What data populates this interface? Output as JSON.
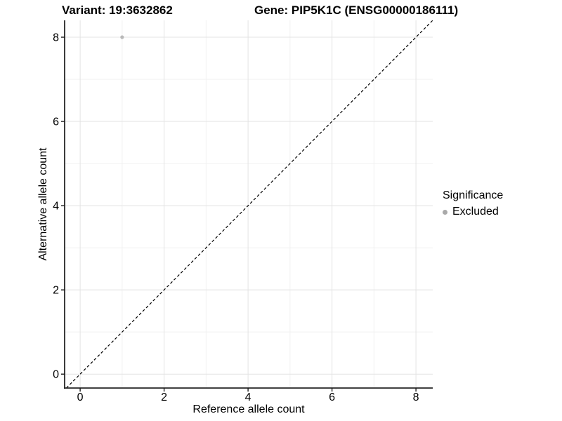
{
  "chart_data": {
    "type": "scatter",
    "titles": [
      "Variant: 19:3632862",
      "Gene: PIP5K1C (ENSG00000186111)"
    ],
    "xlabel": "Reference allele count",
    "ylabel": "Alternative allele count",
    "xlim": [
      -0.37,
      8.4
    ],
    "ylim": [
      -0.33,
      8.4
    ],
    "x_ticks": [
      0,
      2,
      4,
      6,
      8
    ],
    "y_ticks": [
      0,
      2,
      4,
      6,
      8
    ],
    "x_minor_ticks": [
      1,
      3,
      5,
      7
    ],
    "y_minor_ticks": [
      1,
      3,
      5,
      7
    ],
    "grid": "major+minor",
    "points": [
      {
        "x": 1,
        "y": 8,
        "significance": "Excluded"
      }
    ],
    "reference_line": {
      "kind": "identity y=x",
      "style": "dashed",
      "color": "#000000"
    },
    "legend": {
      "title": "Significance",
      "position": "right",
      "items": [
        {
          "label": "Excluded",
          "marker": "circle",
          "color": "#a9a9a9"
        }
      ]
    },
    "colors": {
      "point": "#b9b9b9",
      "grid_major": "#e3e3e3",
      "grid_minor": "#f1f1f1",
      "axis_line": "#262626",
      "tick": "#1a1a1a",
      "text": "#000000",
      "background": "#ffffff"
    }
  }
}
